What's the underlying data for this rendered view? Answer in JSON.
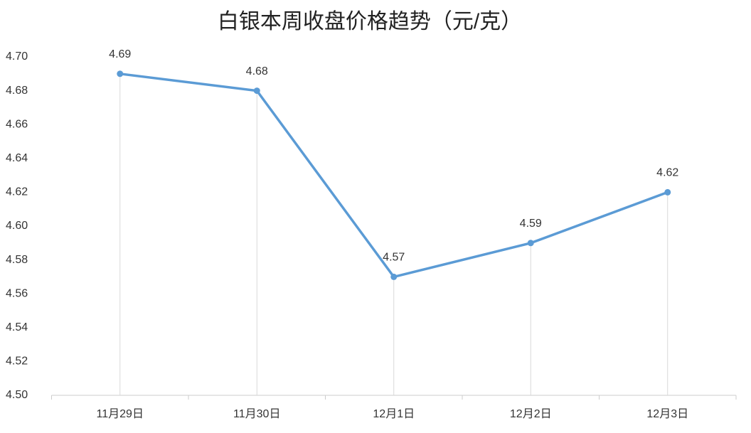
{
  "chart_data": {
    "type": "line",
    "title": "白银本周收盘价格趋势（元/克）",
    "categories": [
      "11月29日",
      "11月30日",
      "12月1日",
      "12月2日",
      "12月3日"
    ],
    "values": [
      4.69,
      4.68,
      4.57,
      4.59,
      4.62
    ],
    "color": "#5b9bd5",
    "ylim": [
      4.5,
      4.7
    ],
    "yticks": [
      {
        "value": 4.5,
        "label": "4.50"
      },
      4.52,
      4.54,
      4.56,
      4.58,
      {
        "value": 4.6,
        "label": "4.60"
      },
      4.62,
      4.64,
      4.66,
      4.68,
      {
        "value": 4.7,
        "label": "4.70"
      }
    ],
    "grid": false,
    "drop_lines": true
  }
}
